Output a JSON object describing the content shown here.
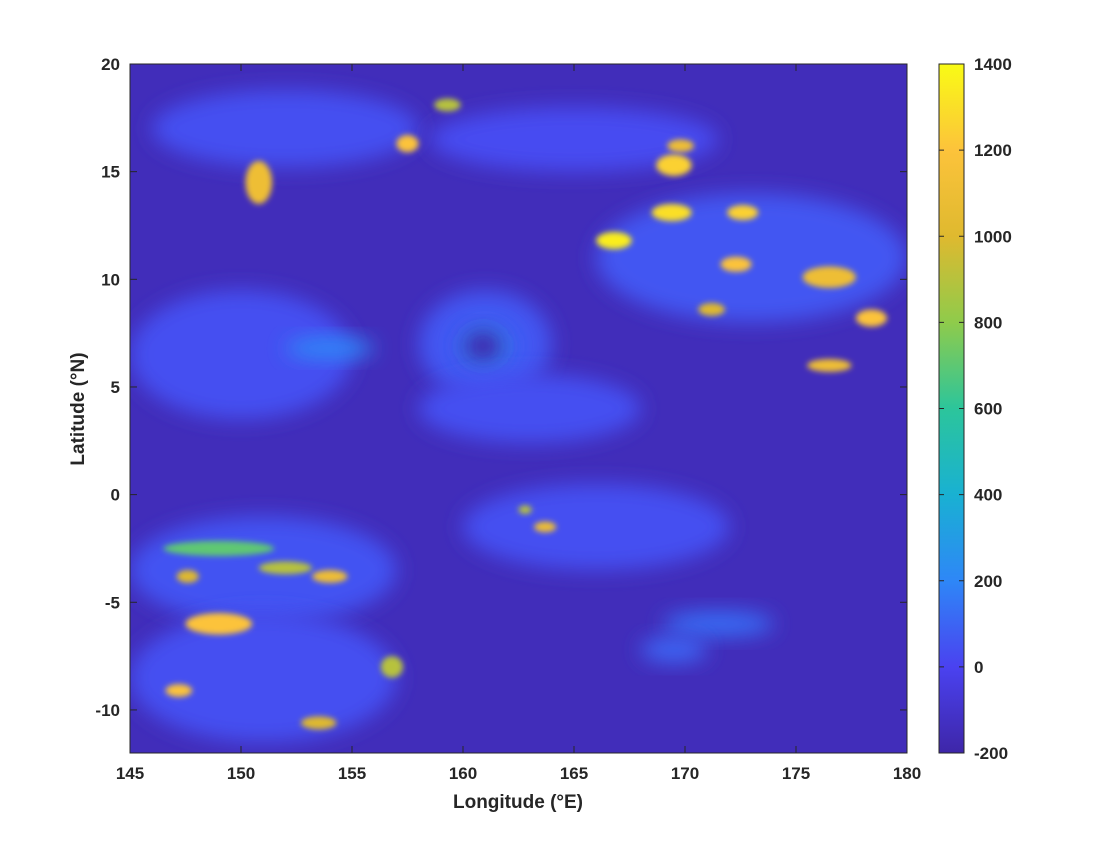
{
  "chart_data": {
    "type": "heatmap",
    "title": "",
    "xlabel": "Longitude (°E)",
    "ylabel": "Latitude (°N)",
    "xlim": [
      145,
      180
    ],
    "ylim": [
      -12,
      20
    ],
    "xticks": [
      145,
      150,
      155,
      160,
      165,
      170,
      175,
      180
    ],
    "yticks": [
      -10,
      -5,
      0,
      5,
      10,
      15,
      20
    ],
    "colorbar": {
      "ticks": [
        -200,
        0,
        200,
        400,
        600,
        800,
        1000,
        1200,
        1400
      ],
      "range": [
        -200,
        1400
      ],
      "colormap": [
        "#3e26a8",
        "#4a42f0",
        "#2e87f7",
        "#19b1d2",
        "#2cc59b",
        "#8fcb4b",
        "#dfb92f",
        "#fcc33b",
        "#f9fb15"
      ]
    },
    "background_level": -150,
    "regions": [
      {
        "lon": 161.0,
        "lat": 7.0,
        "rx": 3.0,
        "ry": 2.5,
        "value": 60
      },
      {
        "lon": 161.0,
        "lat": 6.9,
        "rx": 1.2,
        "ry": 1.0,
        "value": 200
      },
      {
        "lon": 160.9,
        "lat": 6.9,
        "rx": 0.9,
        "ry": 0.75,
        "value": -190
      },
      {
        "lon": 152.0,
        "lat": 17.0,
        "rx": 6.0,
        "ry": 1.8,
        "value": 40
      },
      {
        "lon": 165.0,
        "lat": 16.5,
        "rx": 6.5,
        "ry": 1.5,
        "value": 30
      },
      {
        "lon": 173.0,
        "lat": 11.0,
        "rx": 7.0,
        "ry": 3.0,
        "value": 60
      },
      {
        "lon": 150.0,
        "lat": 6.5,
        "rx": 5.0,
        "ry": 3.0,
        "value": 40
      },
      {
        "lon": 151.0,
        "lat": -3.5,
        "rx": 6.0,
        "ry": 2.5,
        "value": 50
      },
      {
        "lon": 151.0,
        "lat": -8.5,
        "rx": 6.0,
        "ry": 3.0,
        "value": 40
      },
      {
        "lon": 166.0,
        "lat": -1.5,
        "rx": 6.0,
        "ry": 2.0,
        "value": 40
      },
      {
        "lon": 171.5,
        "lat": -6.0,
        "rx": 2.5,
        "ry": 0.6,
        "value": 120
      },
      {
        "lon": 169.5,
        "lat": -7.2,
        "rx": 1.5,
        "ry": 0.6,
        "value": 100
      },
      {
        "lon": 163.0,
        "lat": 4.0,
        "rx": 5.0,
        "ry": 1.6,
        "value": 40
      },
      {
        "lon": 154.0,
        "lat": 6.8,
        "rx": 2.0,
        "ry": 0.5,
        "value": 200
      },
      {
        "lon": 150.8,
        "lat": 14.5,
        "rx": 0.6,
        "ry": 1.0,
        "value": 1100
      },
      {
        "lon": 157.5,
        "lat": 16.3,
        "rx": 0.5,
        "ry": 0.4,
        "value": 1200
      },
      {
        "lon": 159.3,
        "lat": 18.1,
        "rx": 0.6,
        "ry": 0.3,
        "value": 900
      },
      {
        "lon": 166.8,
        "lat": 11.8,
        "rx": 0.8,
        "ry": 0.4,
        "value": 1350
      },
      {
        "lon": 169.5,
        "lat": 15.3,
        "rx": 0.8,
        "ry": 0.5,
        "value": 1250
      },
      {
        "lon": 169.8,
        "lat": 16.2,
        "rx": 0.6,
        "ry": 0.3,
        "value": 1100
      },
      {
        "lon": 169.4,
        "lat": 13.1,
        "rx": 0.9,
        "ry": 0.4,
        "value": 1300
      },
      {
        "lon": 172.6,
        "lat": 13.1,
        "rx": 0.7,
        "ry": 0.35,
        "value": 1250
      },
      {
        "lon": 172.3,
        "lat": 10.7,
        "rx": 0.7,
        "ry": 0.35,
        "value": 1200
      },
      {
        "lon": 171.2,
        "lat": 8.6,
        "rx": 0.6,
        "ry": 0.3,
        "value": 1000
      },
      {
        "lon": 176.5,
        "lat": 10.1,
        "rx": 1.2,
        "ry": 0.5,
        "value": 1100
      },
      {
        "lon": 178.4,
        "lat": 8.2,
        "rx": 0.7,
        "ry": 0.4,
        "value": 1200
      },
      {
        "lon": 176.5,
        "lat": 6.0,
        "rx": 1.0,
        "ry": 0.3,
        "value": 1100
      },
      {
        "lon": 149.0,
        "lat": -2.5,
        "rx": 2.5,
        "ry": 0.35,
        "value": 700
      },
      {
        "lon": 152.0,
        "lat": -3.4,
        "rx": 1.2,
        "ry": 0.3,
        "value": 900
      },
      {
        "lon": 154.0,
        "lat": -3.8,
        "rx": 0.8,
        "ry": 0.3,
        "value": 1100
      },
      {
        "lon": 147.6,
        "lat": -3.8,
        "rx": 0.5,
        "ry": 0.3,
        "value": 1000
      },
      {
        "lon": 149.0,
        "lat": -6.0,
        "rx": 1.5,
        "ry": 0.5,
        "value": 1200
      },
      {
        "lon": 147.2,
        "lat": -9.1,
        "rx": 0.6,
        "ry": 0.3,
        "value": 1200
      },
      {
        "lon": 156.8,
        "lat": -8.0,
        "rx": 0.5,
        "ry": 0.5,
        "value": 900
      },
      {
        "lon": 153.5,
        "lat": -10.6,
        "rx": 0.8,
        "ry": 0.3,
        "value": 1000
      },
      {
        "lon": 163.7,
        "lat": -1.5,
        "rx": 0.5,
        "ry": 0.25,
        "value": 1100
      },
      {
        "lon": 162.8,
        "lat": -0.7,
        "rx": 0.3,
        "ry": 0.2,
        "value": 900
      }
    ]
  }
}
